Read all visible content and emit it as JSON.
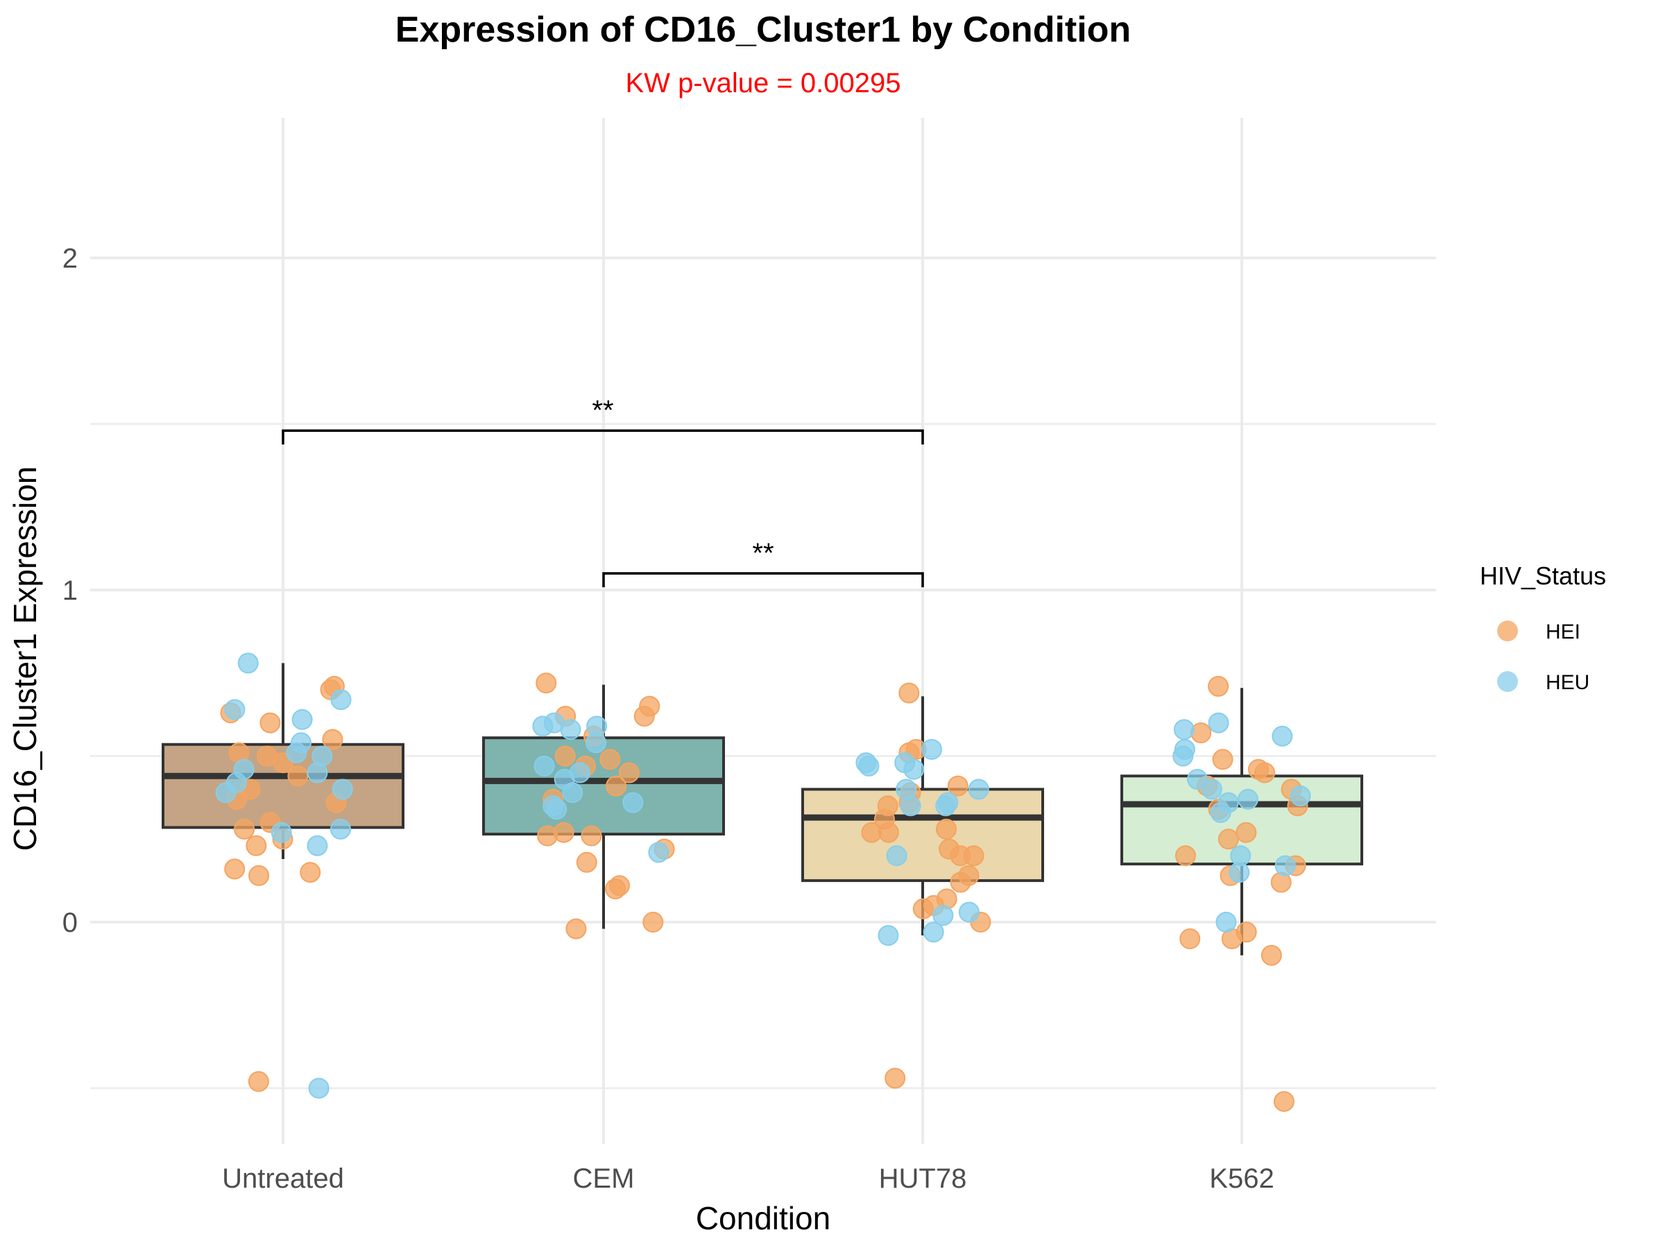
{
  "chart_data": {
    "type": "box",
    "title": "Expression of CD16_Cluster1 by Condition",
    "subtitle": "KW p-value = 0.00295",
    "xlabel": "Condition",
    "ylabel": "CD16_Cluster1 Expression",
    "categories": [
      "Untreated",
      "CEM",
      "HUT78",
      "K562"
    ],
    "ylim": [
      -0.67,
      2.42
    ],
    "yticks": [
      0,
      1,
      2
    ],
    "grid": true,
    "legend": {
      "title": "HIV_Status",
      "position": "right",
      "entries": [
        "HEI",
        "HEU"
      ]
    },
    "colors": {
      "HEI": "#f4a460",
      "HEU": "#87ceeb",
      "box_fill": [
        "#c4a484",
        "#7fb3ad",
        "#ead7ac",
        "#d5edd2"
      ],
      "box_line": "#333333",
      "subtitle": "#ff0000"
    },
    "boxes": [
      {
        "category": "Untreated",
        "q1": 0.285,
        "median": 0.44,
        "q3": 0.535,
        "whisker_low": 0.19,
        "whisker_high": 0.78
      },
      {
        "category": "CEM",
        "q1": 0.265,
        "median": 0.425,
        "q3": 0.555,
        "whisker_low": -0.02,
        "whisker_high": 0.715
      },
      {
        "category": "HUT78",
        "q1": 0.125,
        "median": 0.315,
        "q3": 0.4,
        "whisker_low": -0.04,
        "whisker_high": 0.68
      },
      {
        "category": "K562",
        "q1": 0.175,
        "median": 0.355,
        "q3": 0.44,
        "whisker_low": -0.1,
        "whisker_high": 0.705
      }
    ],
    "comparisons": [
      {
        "from": "Untreated",
        "to": "HUT78",
        "y": 1.48,
        "label": "**"
      },
      {
        "from": "CEM",
        "to": "HUT78",
        "y": 1.05,
        "label": "**"
      }
    ],
    "series": [
      {
        "name": "HEI",
        "points": [
          {
            "x": "Untreated",
            "y": 0.7
          },
          {
            "x": "Untreated",
            "y": 0.71
          },
          {
            "x": "Untreated",
            "y": 0.63
          },
          {
            "x": "Untreated",
            "y": 0.6
          },
          {
            "x": "Untreated",
            "y": 0.55
          },
          {
            "x": "Untreated",
            "y": 0.51
          },
          {
            "x": "Untreated",
            "y": 0.5
          },
          {
            "x": "Untreated",
            "y": 0.48
          },
          {
            "x": "Untreated",
            "y": 0.44
          },
          {
            "x": "Untreated",
            "y": 0.4
          },
          {
            "x": "Untreated",
            "y": 0.37
          },
          {
            "x": "Untreated",
            "y": 0.36
          },
          {
            "x": "Untreated",
            "y": 0.3
          },
          {
            "x": "Untreated",
            "y": 0.28
          },
          {
            "x": "Untreated",
            "y": 0.25
          },
          {
            "x": "Untreated",
            "y": 0.23
          },
          {
            "x": "Untreated",
            "y": 0.16
          },
          {
            "x": "Untreated",
            "y": 0.15
          },
          {
            "x": "Untreated",
            "y": 0.14
          },
          {
            "x": "Untreated",
            "y": -0.48
          },
          {
            "x": "CEM",
            "y": 0.72
          },
          {
            "x": "CEM",
            "y": 0.65
          },
          {
            "x": "CEM",
            "y": 0.62
          },
          {
            "x": "CEM",
            "y": 0.62
          },
          {
            "x": "CEM",
            "y": 0.56
          },
          {
            "x": "CEM",
            "y": 0.5
          },
          {
            "x": "CEM",
            "y": 0.49
          },
          {
            "x": "CEM",
            "y": 0.47
          },
          {
            "x": "CEM",
            "y": 0.45
          },
          {
            "x": "CEM",
            "y": 0.41
          },
          {
            "x": "CEM",
            "y": 0.37
          },
          {
            "x": "CEM",
            "y": 0.27
          },
          {
            "x": "CEM",
            "y": 0.26
          },
          {
            "x": "CEM",
            "y": 0.26
          },
          {
            "x": "CEM",
            "y": 0.22
          },
          {
            "x": "CEM",
            "y": 0.18
          },
          {
            "x": "CEM",
            "y": 0.11
          },
          {
            "x": "CEM",
            "y": 0.1
          },
          {
            "x": "CEM",
            "y": 0.0
          },
          {
            "x": "CEM",
            "y": -0.02
          },
          {
            "x": "HUT78",
            "y": 0.69
          },
          {
            "x": "HUT78",
            "y": 0.52
          },
          {
            "x": "HUT78",
            "y": 0.51
          },
          {
            "x": "HUT78",
            "y": 0.41
          },
          {
            "x": "HUT78",
            "y": 0.39
          },
          {
            "x": "HUT78",
            "y": 0.36
          },
          {
            "x": "HUT78",
            "y": 0.35
          },
          {
            "x": "HUT78",
            "y": 0.31
          },
          {
            "x": "HUT78",
            "y": 0.28
          },
          {
            "x": "HUT78",
            "y": 0.27
          },
          {
            "x": "HUT78",
            "y": 0.27
          },
          {
            "x": "HUT78",
            "y": 0.22
          },
          {
            "x": "HUT78",
            "y": 0.2
          },
          {
            "x": "HUT78",
            "y": 0.2
          },
          {
            "x": "HUT78",
            "y": 0.14
          },
          {
            "x": "HUT78",
            "y": 0.12
          },
          {
            "x": "HUT78",
            "y": 0.07
          },
          {
            "x": "HUT78",
            "y": 0.05
          },
          {
            "x": "HUT78",
            "y": 0.04
          },
          {
            "x": "HUT78",
            "y": 0.0
          },
          {
            "x": "HUT78",
            "y": -0.47
          },
          {
            "x": "K562",
            "y": 0.71
          },
          {
            "x": "K562",
            "y": 0.57
          },
          {
            "x": "K562",
            "y": 0.49
          },
          {
            "x": "K562",
            "y": 0.46
          },
          {
            "x": "K562",
            "y": 0.45
          },
          {
            "x": "K562",
            "y": 0.41
          },
          {
            "x": "K562",
            "y": 0.4
          },
          {
            "x": "K562",
            "y": 0.35
          },
          {
            "x": "K562",
            "y": 0.34
          },
          {
            "x": "K562",
            "y": 0.27
          },
          {
            "x": "K562",
            "y": 0.25
          },
          {
            "x": "K562",
            "y": 0.2
          },
          {
            "x": "K562",
            "y": 0.17
          },
          {
            "x": "K562",
            "y": 0.14
          },
          {
            "x": "K562",
            "y": 0.12
          },
          {
            "x": "K562",
            "y": -0.03
          },
          {
            "x": "K562",
            "y": -0.05
          },
          {
            "x": "K562",
            "y": -0.05
          },
          {
            "x": "K562",
            "y": -0.1
          },
          {
            "x": "K562",
            "y": -0.54
          }
        ]
      },
      {
        "name": "HEU",
        "points": [
          {
            "x": "Untreated",
            "y": 0.78
          },
          {
            "x": "Untreated",
            "y": 0.67
          },
          {
            "x": "Untreated",
            "y": 0.64
          },
          {
            "x": "Untreated",
            "y": 0.61
          },
          {
            "x": "Untreated",
            "y": 0.54
          },
          {
            "x": "Untreated",
            "y": 0.51
          },
          {
            "x": "Untreated",
            "y": 0.5
          },
          {
            "x": "Untreated",
            "y": 0.46
          },
          {
            "x": "Untreated",
            "y": 0.45
          },
          {
            "x": "Untreated",
            "y": 0.42
          },
          {
            "x": "Untreated",
            "y": 0.4
          },
          {
            "x": "Untreated",
            "y": 0.39
          },
          {
            "x": "Untreated",
            "y": 0.28
          },
          {
            "x": "Untreated",
            "y": 0.27
          },
          {
            "x": "Untreated",
            "y": 0.23
          },
          {
            "x": "Untreated",
            "y": -0.5
          },
          {
            "x": "CEM",
            "y": 0.6
          },
          {
            "x": "CEM",
            "y": 0.59
          },
          {
            "x": "CEM",
            "y": 0.59
          },
          {
            "x": "CEM",
            "y": 0.58
          },
          {
            "x": "CEM",
            "y": 0.54
          },
          {
            "x": "CEM",
            "y": 0.47
          },
          {
            "x": "CEM",
            "y": 0.45
          },
          {
            "x": "CEM",
            "y": 0.43
          },
          {
            "x": "CEM",
            "y": 0.39
          },
          {
            "x": "CEM",
            "y": 0.36
          },
          {
            "x": "CEM",
            "y": 0.35
          },
          {
            "x": "CEM",
            "y": 0.34
          },
          {
            "x": "CEM",
            "y": 0.21
          },
          {
            "x": "HUT78",
            "y": 0.52
          },
          {
            "x": "HUT78",
            "y": 0.48
          },
          {
            "x": "HUT78",
            "y": 0.48
          },
          {
            "x": "HUT78",
            "y": 0.47
          },
          {
            "x": "HUT78",
            "y": 0.46
          },
          {
            "x": "HUT78",
            "y": 0.4
          },
          {
            "x": "HUT78",
            "y": 0.4
          },
          {
            "x": "HUT78",
            "y": 0.36
          },
          {
            "x": "HUT78",
            "y": 0.35
          },
          {
            "x": "HUT78",
            "y": 0.35
          },
          {
            "x": "HUT78",
            "y": 0.2
          },
          {
            "x": "HUT78",
            "y": 0.03
          },
          {
            "x": "HUT78",
            "y": 0.02
          },
          {
            "x": "HUT78",
            "y": -0.03
          },
          {
            "x": "HUT78",
            "y": -0.04
          },
          {
            "x": "K562",
            "y": 0.6
          },
          {
            "x": "K562",
            "y": 0.58
          },
          {
            "x": "K562",
            "y": 0.56
          },
          {
            "x": "K562",
            "y": 0.52
          },
          {
            "x": "K562",
            "y": 0.5
          },
          {
            "x": "K562",
            "y": 0.43
          },
          {
            "x": "K562",
            "y": 0.4
          },
          {
            "x": "K562",
            "y": 0.38
          },
          {
            "x": "K562",
            "y": 0.37
          },
          {
            "x": "K562",
            "y": 0.36
          },
          {
            "x": "K562",
            "y": 0.33
          },
          {
            "x": "K562",
            "y": 0.2
          },
          {
            "x": "K562",
            "y": 0.17
          },
          {
            "x": "K562",
            "y": 0.15
          },
          {
            "x": "K562",
            "y": 0.0
          }
        ]
      }
    ]
  }
}
